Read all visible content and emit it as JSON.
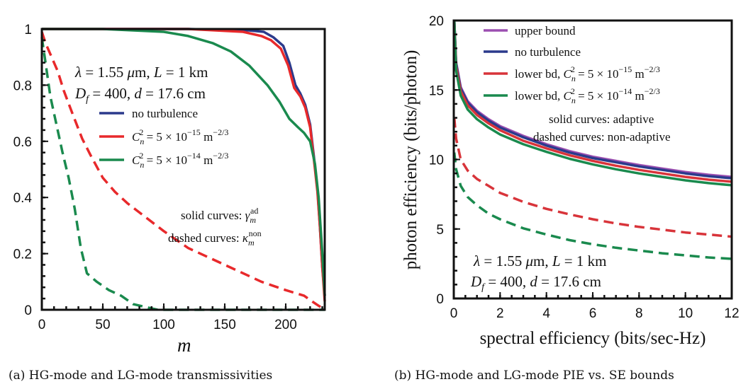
{
  "chart_data": [
    {
      "type": "line",
      "caption": "(a) HG-mode and LG-mode transmissivities",
      "xlabel": "m",
      "ylabel": "",
      "xlim": [
        0,
        232
      ],
      "ylim": [
        0,
        1
      ],
      "x_ticks": [
        "0",
        "50",
        "100",
        "150",
        "200"
      ],
      "y_ticks": [
        "0",
        "0.2",
        "0.4",
        "0.6",
        "0.8",
        "1"
      ],
      "annotations": [
        "λ = 1.55 μm, L = 1 km",
        "D_f = 400, d = 17.6 cm",
        "solid curves: γ_m^ad",
        "dashed curves: κ_m^non"
      ],
      "legend": [
        {
          "label": "no turbulence",
          "color": "#2b3a8c"
        },
        {
          "label": "C_n^2 = 5 × 10^-15 m^-2/3",
          "color": "#e8292b"
        },
        {
          "label": "C_n^2 = 5 × 10^-14 m^-2/3",
          "color": "#1a8a4e"
        }
      ],
      "series": [
        {
          "name": "no turbulence",
          "style": "solid",
          "color": "#2b3a8c",
          "x": [
            0,
            120,
            170,
            182,
            190,
            198,
            203,
            208,
            212,
            216,
            220,
            223,
            226,
            228,
            230,
            232
          ],
          "y": [
            1.0,
            1.0,
            0.995,
            0.99,
            0.97,
            0.94,
            0.88,
            0.8,
            0.77,
            0.73,
            0.66,
            0.55,
            0.43,
            0.3,
            0.15,
            0.05
          ]
        },
        {
          "name": "C_n^2 = 5 × 10^-15 m^-2/3",
          "style": "solid",
          "color": "#e8292b",
          "x": [
            0,
            120,
            165,
            180,
            188,
            196,
            202,
            207,
            212,
            216,
            220,
            223,
            226,
            228,
            230,
            232
          ],
          "y": [
            1.0,
            1.0,
            0.99,
            0.975,
            0.96,
            0.93,
            0.87,
            0.79,
            0.76,
            0.72,
            0.65,
            0.54,
            0.42,
            0.3,
            0.15,
            0.03
          ]
        },
        {
          "name": "C_n^2 = 5 × 10^-14 m^-2/3",
          "style": "solid",
          "color": "#1a8a4e",
          "x": [
            0,
            50,
            100,
            120,
            140,
            155,
            170,
            185,
            195,
            203,
            210,
            215,
            220,
            224,
            227,
            230,
            232
          ],
          "y": [
            1.0,
            1.0,
            0.99,
            0.975,
            0.95,
            0.92,
            0.87,
            0.8,
            0.74,
            0.68,
            0.65,
            0.63,
            0.6,
            0.52,
            0.4,
            0.2,
            0.05
          ]
        },
        {
          "name": "C_n^2 = 5 × 10^-15 m^-2/3",
          "style": "dashed",
          "color": "#e8292b",
          "x": [
            0,
            3,
            8,
            13,
            18,
            25,
            33,
            40,
            50,
            60,
            70,
            85,
            100,
            120,
            140,
            160,
            180,
            200,
            215,
            225,
            232
          ],
          "y": [
            0.99,
            0.95,
            0.9,
            0.85,
            0.78,
            0.7,
            0.61,
            0.55,
            0.47,
            0.42,
            0.38,
            0.33,
            0.28,
            0.22,
            0.18,
            0.14,
            0.1,
            0.07,
            0.05,
            0.02,
            0.0
          ]
        },
        {
          "name": "C_n^2 = 5 × 10^-14 m^-2/3",
          "style": "dashed",
          "color": "#1a8a4e",
          "x": [
            0,
            3,
            7,
            12,
            17,
            22,
            27,
            32,
            37,
            45,
            55,
            65,
            75,
            85,
            95,
            232
          ],
          "y": [
            0.97,
            0.88,
            0.76,
            0.66,
            0.56,
            0.47,
            0.36,
            0.22,
            0.13,
            0.1,
            0.07,
            0.05,
            0.02,
            0.01,
            0.0,
            0.0
          ]
        }
      ]
    },
    {
      "type": "line",
      "caption": "(b) HG-mode and LG-mode PIE vs. SE bounds",
      "xlabel": "spectral efficiency (bits/sec-Hz)",
      "ylabel": "photon efficiency (bits/photon)",
      "xlim": [
        0,
        12
      ],
      "ylim": [
        0,
        20
      ],
      "x_ticks": [
        "0",
        "2",
        "4",
        "6",
        "8",
        "10",
        "12"
      ],
      "y_ticks": [
        "0",
        "5",
        "10",
        "15",
        "20"
      ],
      "annotations": [
        "solid curves: adaptive",
        "dashed curves: non-adaptive",
        "λ = 1.55 μm, L = 1 km",
        "D_f = 400, d = 17.6 cm"
      ],
      "legend": [
        {
          "label": "upper bound",
          "color": "#9b4fb0"
        },
        {
          "label": "no turbulence",
          "color": "#2b3a8c"
        },
        {
          "label": "lower bd, C_n^2 = 5 × 10^-15 m^-2/3",
          "color": "#d8343a"
        },
        {
          "label": "lower bd, C_n^2 = 5 × 10^-14 m^-2/3",
          "color": "#1a8a4e"
        }
      ],
      "series": [
        {
          "name": "upper bound",
          "style": "solid",
          "color": "#9b4fb0",
          "x": [
            0.02,
            0.1,
            0.3,
            0.6,
            1,
            1.5,
            2,
            3,
            4,
            5,
            6,
            7,
            8,
            9,
            10,
            11,
            12
          ],
          "y": [
            20,
            17.0,
            15.2,
            14.2,
            13.5,
            12.9,
            12.4,
            11.7,
            11.1,
            10.6,
            10.2,
            9.9,
            9.6,
            9.35,
            9.1,
            8.9,
            8.75
          ]
        },
        {
          "name": "no turbulence",
          "style": "solid",
          "color": "#2b3a8c",
          "x": [
            0.02,
            0.1,
            0.3,
            0.6,
            1,
            1.5,
            2,
            3,
            4,
            5,
            6,
            7,
            8,
            9,
            10,
            11,
            12
          ],
          "y": [
            20,
            16.9,
            15.1,
            14.1,
            13.4,
            12.8,
            12.3,
            11.6,
            11.0,
            10.5,
            10.1,
            9.8,
            9.5,
            9.25,
            9.0,
            8.8,
            8.65
          ]
        },
        {
          "name": "lower bd, C_n^2 = 5 × 10^-15 m^-2/3",
          "style": "solid",
          "color": "#d8343a",
          "x": [
            0.02,
            0.1,
            0.3,
            0.6,
            1,
            1.5,
            2,
            3,
            4,
            5,
            6,
            7,
            8,
            9,
            10,
            11,
            12
          ],
          "y": [
            20,
            16.7,
            14.9,
            13.9,
            13.2,
            12.6,
            12.1,
            11.35,
            10.8,
            10.3,
            9.9,
            9.55,
            9.25,
            9.0,
            8.75,
            8.55,
            8.4
          ]
        },
        {
          "name": "lower bd, C_n^2 = 5 × 10^-14 m^-2/3",
          "style": "solid",
          "color": "#1a8a4e",
          "x": [
            0.02,
            0.1,
            0.3,
            0.6,
            1,
            1.5,
            2,
            3,
            4,
            5,
            6,
            7,
            8,
            9,
            10,
            11,
            12
          ],
          "y": [
            20,
            16.4,
            14.6,
            13.6,
            12.9,
            12.3,
            11.8,
            11.1,
            10.55,
            10.05,
            9.65,
            9.3,
            9.0,
            8.75,
            8.5,
            8.3,
            8.15
          ]
        },
        {
          "name": "lower bd, C_n^2 = 5 × 10^-15 m^-2/3",
          "style": "dashed",
          "color": "#d8343a",
          "x": [
            0.02,
            0.1,
            0.3,
            0.6,
            1,
            1.5,
            2,
            3,
            4,
            5,
            6,
            7,
            8,
            9,
            10,
            11,
            12
          ],
          "y": [
            13.0,
            11.5,
            10.0,
            9.2,
            8.6,
            8.1,
            7.6,
            6.95,
            6.45,
            6.05,
            5.7,
            5.4,
            5.15,
            4.95,
            4.75,
            4.6,
            4.45
          ]
        },
        {
          "name": "lower bd, C_n^2 = 5 × 10^-14 m^-2/3",
          "style": "dashed",
          "color": "#1a8a4e",
          "x": [
            0.02,
            0.1,
            0.3,
            0.6,
            1,
            1.5,
            2,
            3,
            4,
            5,
            6,
            7,
            8,
            9,
            10,
            11,
            12
          ],
          "y": [
            10.5,
            9.3,
            8.1,
            7.3,
            6.7,
            6.1,
            5.7,
            5.05,
            4.6,
            4.2,
            3.9,
            3.65,
            3.45,
            3.25,
            3.1,
            2.95,
            2.85
          ]
        }
      ]
    }
  ]
}
